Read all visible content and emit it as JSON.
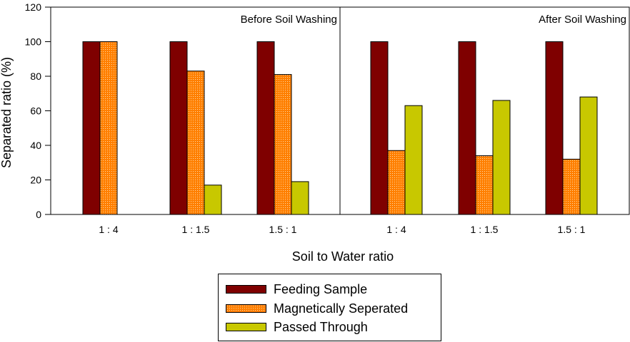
{
  "chart_data": {
    "type": "bar",
    "ylabel": "Separated ratio (%)",
    "xlabel": "Soil to Water ratio",
    "ylim": [
      0,
      120
    ],
    "yticks": [
      "0",
      "20",
      "40",
      "60",
      "80",
      "100",
      "120"
    ],
    "colors": {
      "Feeding Sample": "#7f0000",
      "Magnetically Seperated": "#ff7f00",
      "Passed Through": "#c8c800"
    },
    "series_names": [
      "Feeding Sample",
      "Magnetically Seperated",
      "Passed Through"
    ],
    "panels": [
      {
        "title": "Before Soil Washing",
        "categories": [
          "1 : 4",
          "1 : 1.5",
          "1.5 : 1"
        ],
        "series": [
          {
            "name": "Feeding Sample",
            "values": [
              100,
              100,
              100
            ]
          },
          {
            "name": "Magnetically Seperated",
            "values": [
              100,
              83,
              81
            ]
          },
          {
            "name": "Passed Through",
            "values": [
              null,
              17,
              19
            ]
          }
        ]
      },
      {
        "title": "After Soil Washing",
        "categories": [
          "1 : 4",
          "1 : 1.5",
          "1.5 : 1"
        ],
        "series": [
          {
            "name": "Feeding Sample",
            "values": [
              100,
              100,
              100
            ]
          },
          {
            "name": "Magnetically Seperated",
            "values": [
              37,
              34,
              32
            ]
          },
          {
            "name": "Passed Through",
            "values": [
              63,
              66,
              68
            ]
          }
        ]
      }
    ],
    "legend": {
      "position": "bottom-center"
    }
  }
}
